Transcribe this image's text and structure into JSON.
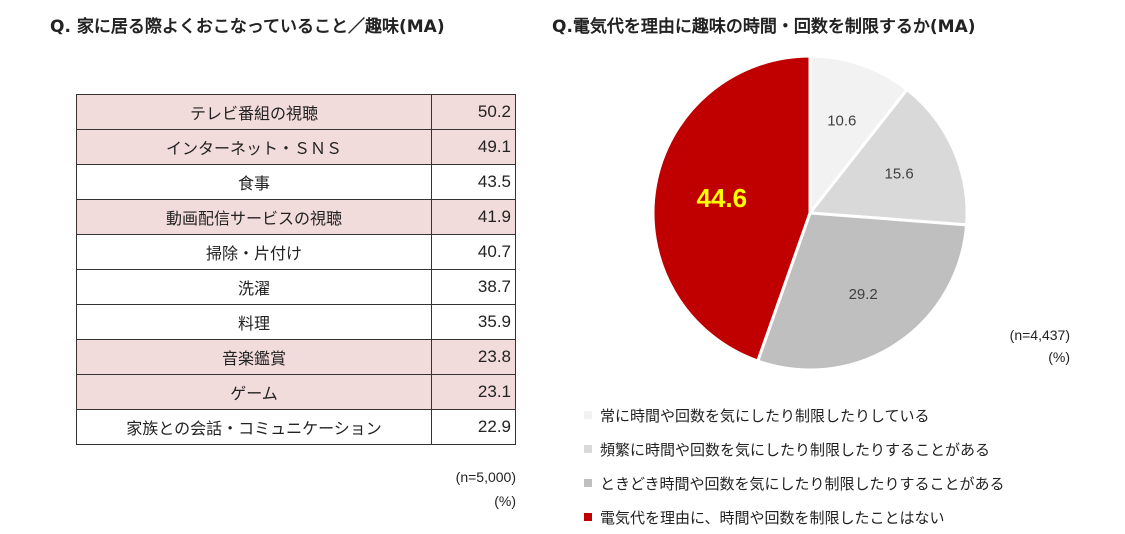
{
  "left": {
    "title": "Q. 家に居る際よくおこなっていること／趣味(MA)",
    "rows": [
      {
        "label": "テレビ番組の視聴",
        "value": "50.2",
        "highlight": true
      },
      {
        "label": "インターネット・ＳＮＳ",
        "value": "49.1",
        "highlight": true
      },
      {
        "label": "食事",
        "value": "43.5",
        "highlight": false
      },
      {
        "label": "動画配信サービスの視聴",
        "value": "41.9",
        "highlight": true
      },
      {
        "label": "掃除・片付け",
        "value": "40.7",
        "highlight": false
      },
      {
        "label": "洗濯",
        "value": "38.7",
        "highlight": false
      },
      {
        "label": "料理",
        "value": "35.9",
        "highlight": false
      },
      {
        "label": "音楽鑑賞",
        "value": "23.8",
        "highlight": true
      },
      {
        "label": "ゲーム",
        "value": "23.1",
        "highlight": true
      },
      {
        "label": "家族との会話・コミュニケーション",
        "value": "22.9",
        "highlight": false
      }
    ],
    "n": "(n=5,000)",
    "unit": "(%)",
    "highlight_color": "#f2dcdb"
  },
  "right": {
    "title": "Q.電気代を理由に趣味の時間・回数を制限するか(MA)",
    "n": "(n=4,437)",
    "unit": "(%)"
  },
  "chart_data": {
    "type": "pie",
    "labels": [
      "常に時間や回数を気にしたり制限したりしている",
      "頻繁に時間や回数を気にしたり制限したりすることがある",
      "ときどき時間や回数を気にしたり制限したりすることがある",
      "電気代を理由に、時間や回数を制限したことはない"
    ],
    "values": [
      10.6,
      15.6,
      29.2,
      44.6
    ],
    "colors": [
      "#f2f2f2",
      "#d9d9d9",
      "#bfbfbf",
      "#c00000"
    ],
    "label_colors": [
      "#404040",
      "#404040",
      "#404040",
      "#ffff00"
    ]
  }
}
